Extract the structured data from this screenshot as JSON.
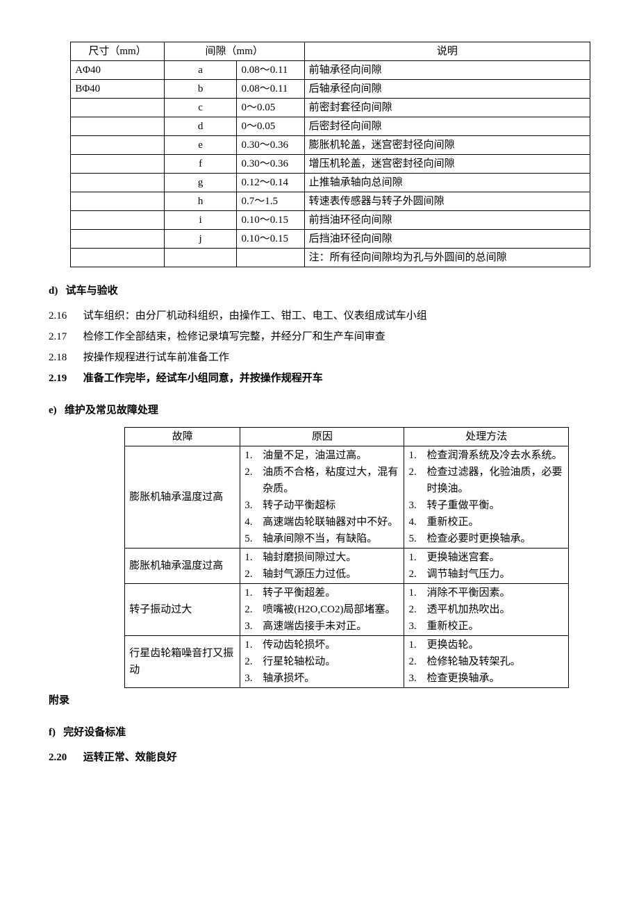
{
  "table1": {
    "headers": [
      "尺寸（mm）",
      "间隙（mm）",
      "说明"
    ],
    "rows": [
      {
        "dim": "AΦ40",
        "sym": "a",
        "gap": "0.08～0.11",
        "desc": "前轴承径向间隙"
      },
      {
        "dim": "BΦ40",
        "sym": "b",
        "gap": "0.08～0.11",
        "desc": "后轴承径向间隙"
      },
      {
        "dim": "",
        "sym": "c",
        "gap": "0～0.05",
        "desc": "前密封套径向间隙"
      },
      {
        "dim": "",
        "sym": "d",
        "gap": "0～0.05",
        "desc": "后密封径向间隙"
      },
      {
        "dim": "",
        "sym": "e",
        "gap": "0.30～0.36",
        "desc": "膨胀机轮盖，迷宫密封径向间隙"
      },
      {
        "dim": "",
        "sym": "f",
        "gap": "0.30～0.36",
        "desc": "增压机轮盖，迷宫密封径向间隙"
      },
      {
        "dim": "",
        "sym": "g",
        "gap": "0.12～0.14",
        "desc": "止推轴承轴向总间隙"
      },
      {
        "dim": "",
        "sym": "h",
        "gap": "0.7～1.5",
        "desc": "转速表传感器与转子外圆间隙"
      },
      {
        "dim": "",
        "sym": "i",
        "gap": "0.10～0.15",
        "desc": "前挡油环径向间隙"
      },
      {
        "dim": "",
        "sym": "j",
        "gap": "0.10～0.15",
        "desc": "后挡油环径向间隙"
      }
    ],
    "note": "注：所有径向间隙均为孔与外圆间的总间隙"
  },
  "sections": {
    "d": {
      "letter": "d)",
      "title": "试车与验收"
    },
    "e": {
      "letter": "e)",
      "title": "维护及常见故障处理"
    },
    "f": {
      "letter": "f)",
      "title": "完好设备标准"
    }
  },
  "paras": {
    "p216": {
      "num": "2.16",
      "text": "试车组织：由分厂机动科组织，由操作工、钳工、电工、仪表组成试车小组"
    },
    "p217": {
      "num": "2.17",
      "text": "检修工作全部结束，检修记录填写完整，并经分厂和生产车间审查"
    },
    "p218": {
      "num": "2.18",
      "text": "按操作规程进行试车前准备工作"
    },
    "p219": {
      "num": "2.19",
      "text": "准备工作完毕，经试车小组同意，并按操作规程开车"
    },
    "p220": {
      "num": "2.20",
      "text": "运转正常、效能良好"
    }
  },
  "appendix": "附录",
  "table2": {
    "headers": [
      "故障",
      "原因",
      "处理方法"
    ],
    "rows": [
      {
        "fault": "膨胀机轴承温度过高",
        "causes": [
          "油量不足，油温过高。",
          "油质不合格，粘度过大，混有杂质。",
          "转子动平衡超标",
          "高速端齿轮联轴器对中不好。",
          "轴承间隙不当，有缺陷。"
        ],
        "solutions": [
          "检查润滑系统及冷去水系统。",
          "检查过滤器，化验油质，必要时换油。",
          "转子重做平衡。",
          "重新校正。",
          "检查必要时更换轴承。"
        ]
      },
      {
        "fault": "膨胀机轴承温度过高",
        "causes": [
          "轴封磨损间隙过大。",
          "轴封气源压力过低。"
        ],
        "solutions": [
          "更换轴迷宫套。",
          "调节轴封气压力。"
        ]
      },
      {
        "fault": "转子振动过大",
        "causes": [
          "转子平衡超差。",
          "喷嘴被(H2O,CO2)局部堵塞。",
          "高速端齿接手未对正。"
        ],
        "solutions": [
          "消除不平衡因素。",
          "透平机加热吹出。",
          "重新校正。"
        ]
      },
      {
        "fault": "行星齿轮箱噪音打又振动",
        "causes": [
          "传动齿轮损坏。",
          "行星轮轴松动。",
          "轴承损坏。"
        ],
        "solutions": [
          "更换齿轮。",
          "检修轮轴及转架孔。",
          "检查更换轴承。"
        ]
      }
    ]
  }
}
